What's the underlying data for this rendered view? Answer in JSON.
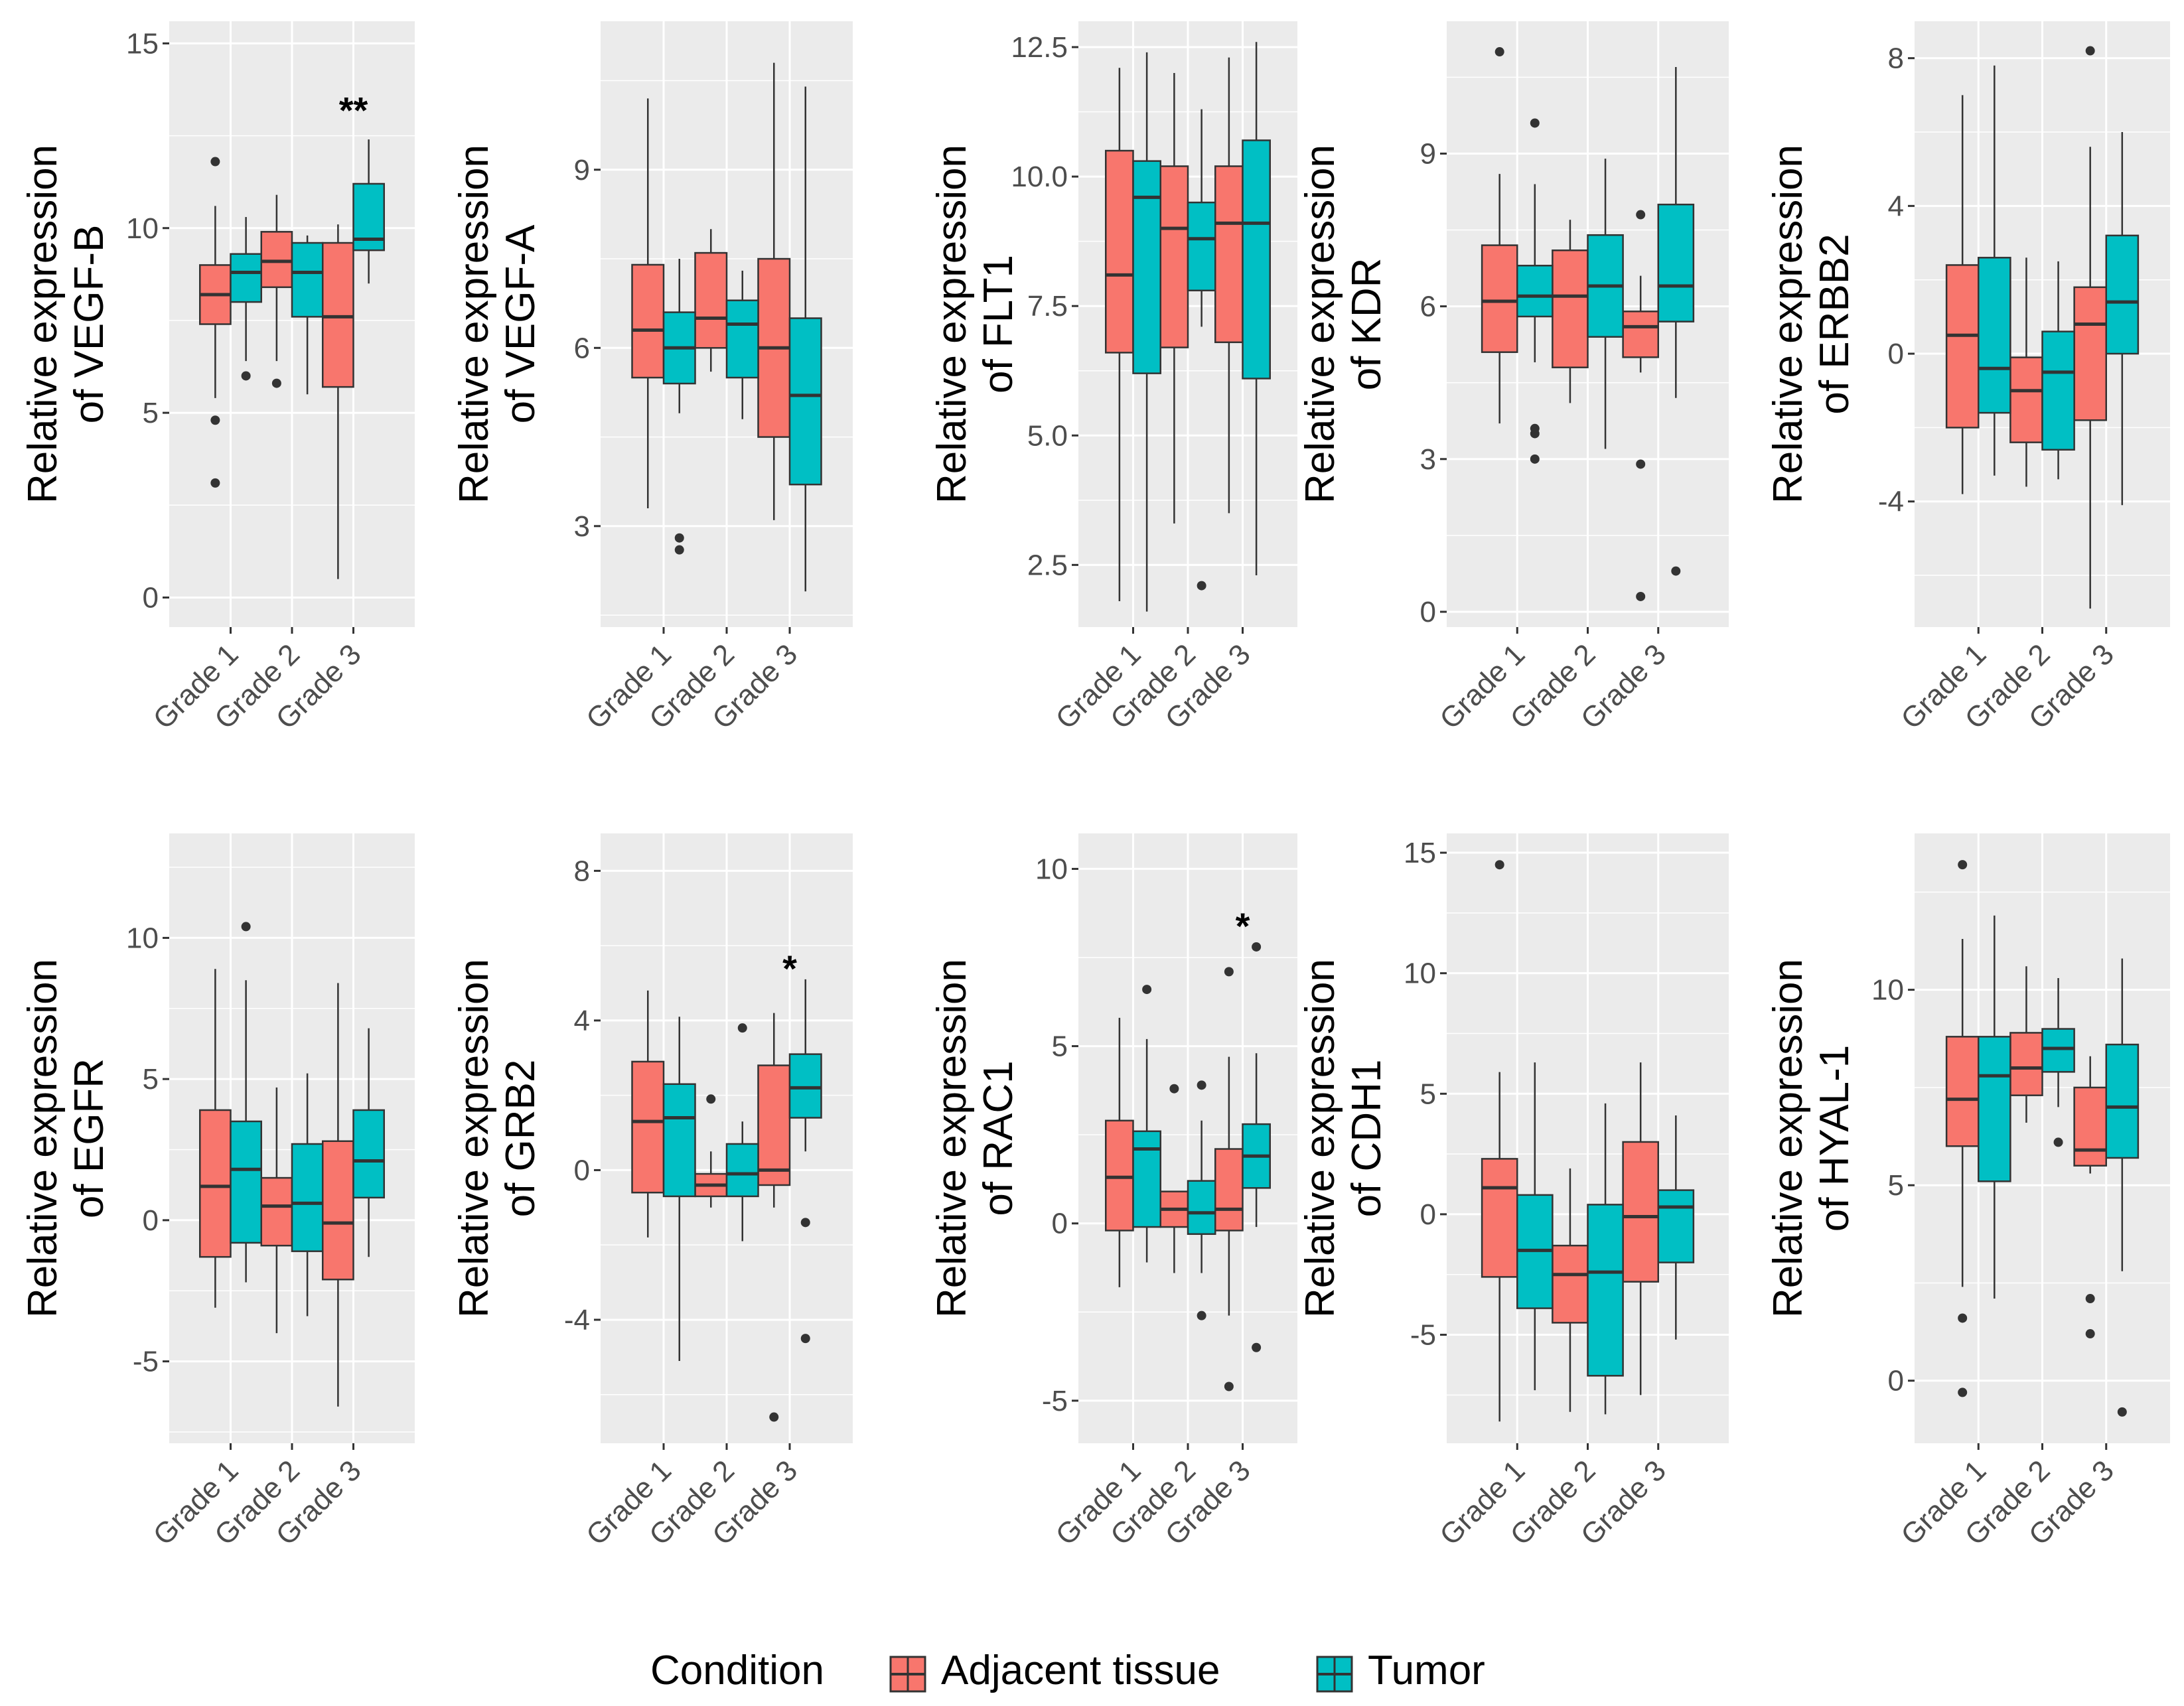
{
  "colors": {
    "adjacent": "#F8766D",
    "tumor": "#00BFC4",
    "panel_bg": "#EBEBEB",
    "grid": "#FFFFFF",
    "outline": "#333333"
  },
  "legend": {
    "title": "Condition",
    "items": [
      "Adjacent tissue",
      "Tumor"
    ]
  },
  "chart_data": [
    {
      "type": "box",
      "gene": "VEGF-B",
      "ylabel_line1": "Relative expression",
      "ylabel_line2": "of VEGF-B",
      "categories": [
        "Grade 1",
        "Grade 2",
        "Grade 3"
      ],
      "ylim": [
        -0.8,
        15.6
      ],
      "yticks": [
        0,
        5,
        10,
        15
      ],
      "ytick_labels": [
        "0",
        "5",
        "10",
        "15"
      ],
      "significance": [
        {
          "grade": "Grade 3",
          "label": "**",
          "y": 13.2
        }
      ],
      "series": [
        {
          "name": "Adjacent tissue",
          "boxes": [
            {
              "min": 5.4,
              "q1": 7.4,
              "median": 8.2,
              "q3": 9.0,
              "max": 10.6,
              "outliers": [
                11.8,
                4.8,
                3.1
              ]
            },
            {
              "min": 6.4,
              "q1": 8.4,
              "median": 9.1,
              "q3": 9.9,
              "max": 10.9,
              "outliers": [
                5.8
              ]
            },
            {
              "min": 0.5,
              "q1": 5.7,
              "median": 7.6,
              "q3": 9.6,
              "max": 10.1,
              "outliers": []
            }
          ]
        },
        {
          "name": "Tumor",
          "boxes": [
            {
              "min": 6.4,
              "q1": 8.0,
              "median": 8.8,
              "q3": 9.3,
              "max": 10.3,
              "outliers": [
                6.0
              ]
            },
            {
              "min": 5.5,
              "q1": 7.6,
              "median": 8.8,
              "q3": 9.6,
              "max": 9.8,
              "outliers": []
            },
            {
              "min": 8.5,
              "q1": 9.4,
              "median": 9.7,
              "q3": 11.2,
              "max": 12.4,
              "outliers": []
            }
          ]
        }
      ]
    },
    {
      "type": "box",
      "gene": "VEGF-A",
      "ylabel_line1": "Relative expression",
      "ylabel_line2": "of VEGF-A",
      "categories": [
        "Grade 1",
        "Grade 2",
        "Grade 3"
      ],
      "ylim": [
        1.3,
        11.5
      ],
      "yticks": [
        3,
        6,
        9
      ],
      "ytick_labels": [
        "3",
        "6",
        "9"
      ],
      "significance": [],
      "series": [
        {
          "name": "Adjacent tissue",
          "boxes": [
            {
              "min": 3.3,
              "q1": 5.5,
              "median": 6.3,
              "q3": 7.4,
              "max": 10.2,
              "outliers": []
            },
            {
              "min": 5.6,
              "q1": 6.0,
              "median": 6.5,
              "q3": 7.6,
              "max": 8.0,
              "outliers": []
            },
            {
              "min": 3.1,
              "q1": 4.5,
              "median": 6.0,
              "q3": 7.5,
              "max": 10.8,
              "outliers": []
            }
          ]
        },
        {
          "name": "Tumor",
          "boxes": [
            {
              "min": 4.9,
              "q1": 5.4,
              "median": 6.0,
              "q3": 6.6,
              "max": 7.5,
              "outliers": [
                2.8,
                2.6
              ]
            },
            {
              "min": 4.8,
              "q1": 5.5,
              "median": 6.4,
              "q3": 6.8,
              "max": 7.3,
              "outliers": []
            },
            {
              "min": 1.9,
              "q1": 3.7,
              "median": 5.2,
              "q3": 6.5,
              "max": 10.4,
              "outliers": []
            }
          ]
        }
      ]
    },
    {
      "type": "box",
      "gene": "FLT1",
      "ylabel_line1": "Relative expression",
      "ylabel_line2": "of FLT1",
      "categories": [
        "Grade 1",
        "Grade 2",
        "Grade 3"
      ],
      "ylim": [
        1.3,
        13.0
      ],
      "yticks": [
        2.5,
        5.0,
        7.5,
        10.0,
        12.5
      ],
      "ytick_labels": [
        "2.5",
        "5.0",
        "7.5",
        "10.0",
        "12.5"
      ],
      "significance": [],
      "series": [
        {
          "name": "Adjacent tissue",
          "boxes": [
            {
              "min": 1.8,
              "q1": 6.6,
              "median": 8.1,
              "q3": 10.5,
              "max": 12.1,
              "outliers": []
            },
            {
              "min": 3.3,
              "q1": 6.7,
              "median": 9.0,
              "q3": 10.2,
              "max": 12.0,
              "outliers": []
            },
            {
              "min": 3.5,
              "q1": 6.8,
              "median": 9.1,
              "q3": 10.2,
              "max": 12.3,
              "outliers": []
            }
          ]
        },
        {
          "name": "Tumor",
          "boxes": [
            {
              "min": 1.6,
              "q1": 6.2,
              "median": 9.6,
              "q3": 10.3,
              "max": 12.4,
              "outliers": []
            },
            {
              "min": 7.1,
              "q1": 7.8,
              "median": 8.8,
              "q3": 9.5,
              "max": 11.3,
              "outliers": [
                2.1
              ]
            },
            {
              "min": 2.3,
              "q1": 6.1,
              "median": 9.1,
              "q3": 10.7,
              "max": 12.6,
              "outliers": []
            }
          ]
        }
      ]
    },
    {
      "type": "box",
      "gene": "KDR",
      "ylabel_line1": "Relative expression",
      "ylabel_line2": "of KDR",
      "categories": [
        "Grade 1",
        "Grade 2",
        "Grade 3"
      ],
      "ylim": [
        -0.3,
        11.6
      ],
      "yticks": [
        0,
        3,
        6,
        9
      ],
      "ytick_labels": [
        "0",
        "3",
        "6",
        "9"
      ],
      "significance": [],
      "series": [
        {
          "name": "Adjacent tissue",
          "boxes": [
            {
              "min": 3.7,
              "q1": 5.1,
              "median": 6.1,
              "q3": 7.2,
              "max": 8.6,
              "outliers": [
                11.0
              ]
            },
            {
              "min": 4.1,
              "q1": 4.8,
              "median": 6.2,
              "q3": 7.1,
              "max": 7.7,
              "outliers": []
            },
            {
              "min": 4.7,
              "q1": 5.0,
              "median": 5.6,
              "q3": 5.9,
              "max": 6.6,
              "outliers": [
                7.8,
                2.9,
                0.3
              ]
            }
          ]
        },
        {
          "name": "Tumor",
          "boxes": [
            {
              "min": 4.9,
              "q1": 5.8,
              "median": 6.2,
              "q3": 6.8,
              "max": 8.4,
              "outliers": [
                9.6,
                3.6,
                3.5,
                3.0
              ]
            },
            {
              "min": 3.2,
              "q1": 5.4,
              "median": 6.4,
              "q3": 7.4,
              "max": 8.9,
              "outliers": []
            },
            {
              "min": 4.2,
              "q1": 5.7,
              "median": 6.4,
              "q3": 8.0,
              "max": 10.7,
              "outliers": [
                0.8
              ]
            }
          ]
        }
      ]
    },
    {
      "type": "box",
      "gene": "ERBB2",
      "ylabel_line1": "Relative expression",
      "ylabel_line2": "of ERBB2",
      "categories": [
        "Grade 1",
        "Grade 2",
        "Grade 3"
      ],
      "ylim": [
        -7.4,
        9.0
      ],
      "yticks": [
        -4,
        0,
        4,
        8
      ],
      "ytick_labels": [
        "-4",
        "0",
        "4",
        "8"
      ],
      "significance": [],
      "series": [
        {
          "name": "Adjacent tissue",
          "boxes": [
            {
              "min": -3.8,
              "q1": -2.0,
              "median": 0.5,
              "q3": 2.4,
              "max": 7.0,
              "outliers": []
            },
            {
              "min": -3.6,
              "q1": -2.4,
              "median": -1.0,
              "q3": -0.1,
              "max": 2.6,
              "outliers": []
            },
            {
              "min": -6.9,
              "q1": -1.8,
              "median": 0.8,
              "q3": 1.8,
              "max": 5.6,
              "outliers": [
                8.2
              ]
            }
          ]
        },
        {
          "name": "Tumor",
          "boxes": [
            {
              "min": -3.3,
              "q1": -1.6,
              "median": -0.4,
              "q3": 2.6,
              "max": 7.8,
              "outliers": []
            },
            {
              "min": -3.4,
              "q1": -2.6,
              "median": -0.5,
              "q3": 0.6,
              "max": 2.5,
              "outliers": []
            },
            {
              "min": -4.1,
              "q1": 0.0,
              "median": 1.4,
              "q3": 3.2,
              "max": 6.0,
              "outliers": []
            }
          ]
        }
      ]
    },
    {
      "type": "box",
      "gene": "EGFR",
      "ylabel_line1": "Relative expression",
      "ylabel_line2": "of EGFR",
      "categories": [
        "Grade 1",
        "Grade 2",
        "Grade 3"
      ],
      "ylim": [
        -7.9,
        13.7
      ],
      "yticks": [
        -5,
        0,
        5,
        10
      ],
      "ytick_labels": [
        "-5",
        "0",
        "5",
        "10"
      ],
      "significance": [],
      "series": [
        {
          "name": "Adjacent tissue",
          "boxes": [
            {
              "min": -3.1,
              "q1": -1.3,
              "median": 1.2,
              "q3": 3.9,
              "max": 8.9,
              "outliers": []
            },
            {
              "min": -4.0,
              "q1": -0.9,
              "median": 0.5,
              "q3": 1.5,
              "max": 4.7,
              "outliers": []
            },
            {
              "min": -6.6,
              "q1": -2.1,
              "median": -0.1,
              "q3": 2.8,
              "max": 8.4,
              "outliers": []
            }
          ]
        },
        {
          "name": "Tumor",
          "boxes": [
            {
              "min": -2.2,
              "q1": -0.8,
              "median": 1.8,
              "q3": 3.5,
              "max": 8.5,
              "outliers": [
                10.4
              ]
            },
            {
              "min": -3.4,
              "q1": -1.1,
              "median": 0.6,
              "q3": 2.7,
              "max": 5.2,
              "outliers": []
            },
            {
              "min": -1.3,
              "q1": 0.8,
              "median": 2.1,
              "q3": 3.9,
              "max": 6.8,
              "outliers": []
            }
          ]
        }
      ]
    },
    {
      "type": "box",
      "gene": "GRB2",
      "ylabel_line1": "Relative expression",
      "ylabel_line2": "of GRB2",
      "categories": [
        "Grade 1",
        "Grade 2",
        "Grade 3"
      ],
      "ylim": [
        -7.3,
        9.0
      ],
      "yticks": [
        -4,
        0,
        4,
        8
      ],
      "ytick_labels": [
        "-4",
        "0",
        "4",
        "8"
      ],
      "significance": [
        {
          "grade": "Grade 3",
          "label": "*",
          "y": 5.4
        }
      ],
      "series": [
        {
          "name": "Adjacent tissue",
          "boxes": [
            {
              "min": -1.8,
              "q1": -0.6,
              "median": 1.3,
              "q3": 2.9,
              "max": 4.8,
              "outliers": []
            },
            {
              "min": -1.0,
              "q1": -0.7,
              "median": -0.4,
              "q3": -0.1,
              "max": 0.5,
              "outliers": [
                1.9
              ]
            },
            {
              "min": -1.0,
              "q1": -0.4,
              "median": 0.0,
              "q3": 2.8,
              "max": 4.2,
              "outliers": [
                -6.6
              ]
            }
          ]
        },
        {
          "name": "Tumor",
          "boxes": [
            {
              "min": -5.1,
              "q1": -0.7,
              "median": 1.4,
              "q3": 2.3,
              "max": 4.1,
              "outliers": []
            },
            {
              "min": -1.9,
              "q1": -0.7,
              "median": -0.1,
              "q3": 0.7,
              "max": 1.3,
              "outliers": [
                3.8
              ]
            },
            {
              "min": 0.5,
              "q1": 1.4,
              "median": 2.2,
              "q3": 3.1,
              "max": 5.1,
              "outliers": [
                -1.4,
                -4.5
              ]
            }
          ]
        }
      ]
    },
    {
      "type": "box",
      "gene": "RAC1",
      "ylabel_line1": "Relative expression",
      "ylabel_line2": "of RAC1",
      "categories": [
        "Grade 1",
        "Grade 2",
        "Grade 3"
      ],
      "ylim": [
        -6.2,
        11.0
      ],
      "yticks": [
        -5,
        0,
        5,
        10
      ],
      "ytick_labels": [
        "-5",
        "0",
        "5",
        "10"
      ],
      "significance": [
        {
          "grade": "Grade 3",
          "label": "*",
          "y": 8.4
        }
      ],
      "series": [
        {
          "name": "Adjacent tissue",
          "boxes": [
            {
              "min": -1.8,
              "q1": -0.2,
              "median": 1.3,
              "q3": 2.9,
              "max": 5.8,
              "outliers": []
            },
            {
              "min": -1.4,
              "q1": -0.1,
              "median": 0.4,
              "q3": 0.9,
              "max": 0.9,
              "outliers": [
                3.8
              ]
            },
            {
              "min": -2.6,
              "q1": -0.2,
              "median": 0.4,
              "q3": 2.1,
              "max": 4.7,
              "outliers": [
                7.1,
                -4.6
              ]
            }
          ]
        },
        {
          "name": "Tumor",
          "boxes": [
            {
              "min": -1.1,
              "q1": -0.1,
              "median": 2.1,
              "q3": 2.6,
              "max": 5.2,
              "outliers": [
                6.6
              ]
            },
            {
              "min": -1.4,
              "q1": -0.3,
              "median": 0.3,
              "q3": 1.2,
              "max": 2.9,
              "outliers": [
                3.9,
                -2.6
              ]
            },
            {
              "min": -0.1,
              "q1": 1.0,
              "median": 1.9,
              "q3": 2.8,
              "max": 4.8,
              "outliers": [
                7.8,
                -3.5
              ]
            }
          ]
        }
      ]
    },
    {
      "type": "box",
      "gene": "CDH1",
      "ylabel_line1": "Relative expression",
      "ylabel_line2": "of CDH1",
      "categories": [
        "Grade 1",
        "Grade 2",
        "Grade 3"
      ],
      "ylim": [
        -9.5,
        15.8
      ],
      "yticks": [
        -5,
        0,
        5,
        10,
        15
      ],
      "ytick_labels": [
        "-5",
        "0",
        "5",
        "10",
        "15"
      ],
      "significance": [],
      "series": [
        {
          "name": "Adjacent tissue",
          "boxes": [
            {
              "min": -8.6,
              "q1": -2.6,
              "median": 1.1,
              "q3": 2.3,
              "max": 5.9,
              "outliers": [
                14.5
              ]
            },
            {
              "min": -8.2,
              "q1": -4.5,
              "median": -2.5,
              "q3": -1.3,
              "max": 1.9,
              "outliers": []
            },
            {
              "min": -7.5,
              "q1": -2.8,
              "median": -0.1,
              "q3": 3.0,
              "max": 6.3,
              "outliers": []
            }
          ]
        },
        {
          "name": "Tumor",
          "boxes": [
            {
              "min": -7.3,
              "q1": -3.9,
              "median": -1.5,
              "q3": 0.8,
              "max": 6.3,
              "outliers": []
            },
            {
              "min": -8.3,
              "q1": -6.7,
              "median": -2.4,
              "q3": 0.4,
              "max": 4.6,
              "outliers": []
            },
            {
              "min": -5.2,
              "q1": -2.0,
              "median": 0.3,
              "q3": 1.0,
              "max": 4.1,
              "outliers": []
            }
          ]
        }
      ]
    },
    {
      "type": "box",
      "gene": "HYAL-1",
      "ylabel_line1": "Relative expression",
      "ylabel_line2": "of HYAL-1",
      "categories": [
        "Grade 1",
        "Grade 2",
        "Grade 3"
      ],
      "ylim": [
        -1.6,
        14.0
      ],
      "yticks": [
        0,
        5,
        10
      ],
      "ytick_labels": [
        "0",
        "5",
        "10"
      ],
      "significance": [],
      "series": [
        {
          "name": "Adjacent tissue",
          "boxes": [
            {
              "min": 2.4,
              "q1": 6.0,
              "median": 7.2,
              "q3": 8.8,
              "max": 11.3,
              "outliers": [
                13.2,
                1.6,
                -0.3
              ]
            },
            {
              "min": 6.6,
              "q1": 7.3,
              "median": 8.0,
              "q3": 8.9,
              "max": 10.6,
              "outliers": []
            },
            {
              "min": 5.3,
              "q1": 5.5,
              "median": 5.9,
              "q3": 7.5,
              "max": 8.3,
              "outliers": [
                2.1,
                1.2
              ]
            }
          ]
        },
        {
          "name": "Tumor",
          "boxes": [
            {
              "min": 2.1,
              "q1": 5.1,
              "median": 7.8,
              "q3": 8.8,
              "max": 11.9,
              "outliers": []
            },
            {
              "min": 7.0,
              "q1": 7.9,
              "median": 8.5,
              "q3": 9.0,
              "max": 10.3,
              "outliers": [
                6.1
              ]
            },
            {
              "min": 2.8,
              "q1": 5.7,
              "median": 7.0,
              "q3": 8.6,
              "max": 10.8,
              "outliers": [
                -0.8
              ]
            }
          ]
        }
      ]
    }
  ]
}
